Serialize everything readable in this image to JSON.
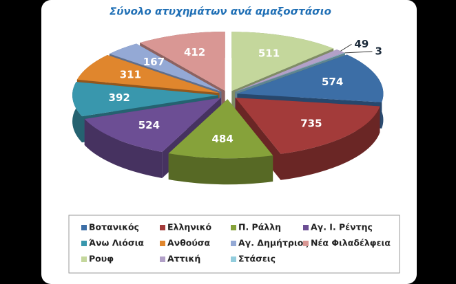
{
  "chart_data": {
    "type": "pie",
    "title": "Σύνολο ατυχημάτων ανά αμαξοστάσιο",
    "categories": [
      "Βοτανικός",
      "Ελληνικό",
      "Π. Ράλλη",
      "Αγ. Ι. Ρέντης",
      "Άνω Λιόσια",
      "Ανθούσα",
      "Αγ. Δημήτριος",
      "Νέα Φιλαδέλφεια",
      "Ρουφ",
      "Αττική",
      "Στάσεις"
    ],
    "values": [
      574,
      735,
      484,
      524,
      392,
      311,
      167,
      412,
      511,
      49,
      3
    ],
    "colors": [
      "#3c6ea6",
      "#a33b3a",
      "#86a23a",
      "#6c4e94",
      "#3997ad",
      "#e0862d",
      "#94a9d5",
      "#d99794",
      "#c4d79c",
      "#b2a1c8",
      "#93cddd"
    ]
  }
}
